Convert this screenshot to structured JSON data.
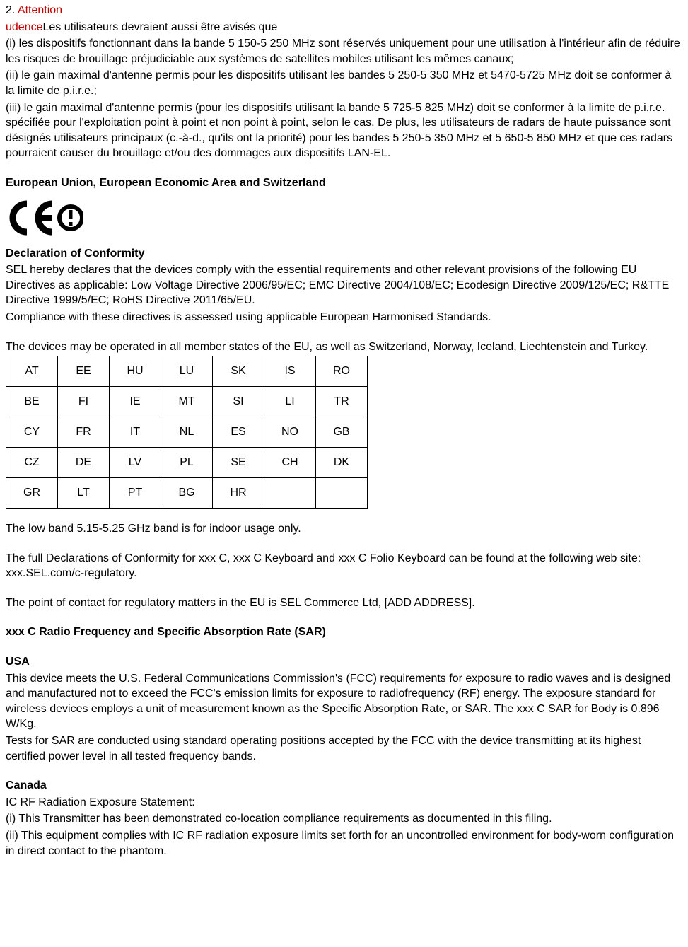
{
  "top": {
    "line1_prefix_black": "2. ",
    "line1_red": "Attention",
    "line2_red": "udence",
    "line2_black": "Les utilisateurs devraient aussi être avisés que",
    "para_i": "(i) les dispositifs fonctionnant dans la bande 5 150-5 250 MHz sont réservés uniquement pour une utilisation à l'intérieur afin de réduire les risques de brouillage préjudiciable aux systèmes de satellites mobiles utilisant les mêmes canaux;",
    "para_ii": "(ii) le gain maximal d'antenne permis pour les dispositifs utilisant les bandes 5 250-5 350 MHz et 5470-5725 MHz doit se conformer à la limite de p.i.r.e.;",
    "para_iii": "(iii) le gain maximal d'antenne permis (pour les dispositifs utilisant la bande 5 725-5 825 MHz) doit se conformer à la limite de p.i.r.e. spécifiée pour l'exploitation point à point et non point à point, selon le cas. De plus, les utilisateurs de radars de haute puissance sont désignés utilisateurs principaux (c.-à-d., qu'ils ont la priorité) pour les bandes 5 250-5 350 MHz et 5 650-5 850 MHz et que ces radars pourraient causer du brouillage et/ou des dommages aux dispositifs LAN-EL."
  },
  "eu": {
    "heading": "European Union, European Economic Area and Switzerland",
    "decl_heading": "Declaration of Conformity",
    "decl_body1": "SEL hereby declares that the devices comply with the essential requirements and other relevant provisions of the following EU Directives as applicable: Low Voltage Directive 2006/95/EC; EMC Directive 2004/108/EC; Ecodesign Directive 2009/125/EC; R&TTE Directive 1999/5/EC; RoHS Directive 2011/65/EU.",
    "decl_body2": "Compliance with these directives is assessed using applicable European Harmonised Standards.",
    "member_states": "The devices may be operated in all member states of the EU, as well as Switzerland, Norway, Iceland, Liechtenstein and Turkey.",
    "countries": [
      [
        "AT",
        "EE",
        "HU",
        "LU",
        "SK",
        "IS",
        "RO"
      ],
      [
        "BE",
        "FI",
        "IE",
        "MT",
        "SI",
        "LI",
        "TR"
      ],
      [
        "CY",
        "FR",
        "IT",
        "NL",
        "ES",
        "NO",
        "GB"
      ],
      [
        "CZ",
        "DE",
        "LV",
        "PL",
        "SE",
        "CH",
        "DK"
      ],
      [
        "GR",
        "LT",
        "PT",
        "BG",
        "HR",
        "",
        ""
      ]
    ],
    "low_band": "The low band 5.15-5.25 GHz band is for indoor usage only.",
    "decl_link": "The full Declarations of Conformity for xxx C, xxx C Keyboard and xxx C Folio Keyboard can be found at the following web site: xxx.SEL.com/c-regulatory.",
    "contact": "The point of contact for regulatory matters in the EU is SEL Commerce Ltd, [ADD ADDRESS]."
  },
  "sar": {
    "heading": "xxx C Radio Frequency and Specific Absorption Rate (SAR)",
    "usa_heading": "USA",
    "usa_body": "This device meets the U.S. Federal Communications Commission's (FCC) requirements for exposure to radio waves and is designed and manufactured not to exceed the FCC's emission limits for exposure to radiofrequency (RF) energy. The exposure standard for wireless devices employs a unit of measurement known as the Specific Absorption Rate, or SAR. The xxx C SAR for Body  is 0.896 W/Kg.",
    "usa_body2": "Tests for SAR are conducted using standard operating positions accepted by the FCC with the device transmitting at its highest certified power level in all tested frequency bands.",
    "canada_heading": "Canada",
    "canada_line1": "IC RF Radiation Exposure Statement:",
    "canada_i": "(i) This Transmitter has been demonstrated co-location compliance requirements as documented in this filing.",
    "canada_ii": "(ii)  This equipment complies with IC RF radiation exposure limits set forth for an uncontrolled environment for body-worn configuration in direct contact to the phantom."
  }
}
